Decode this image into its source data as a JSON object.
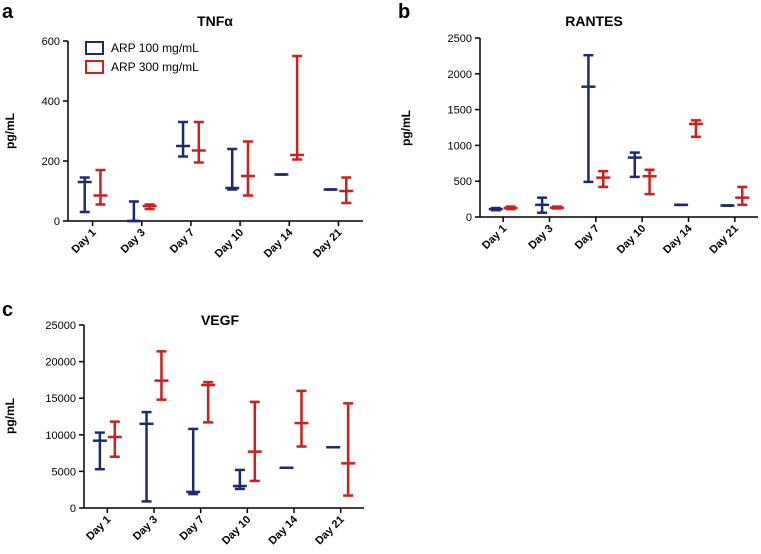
{
  "colors": {
    "series_a": "#1f2a6b",
    "series_b": "#cc1f1f"
  },
  "legend": [
    "ARP 100 mg/mL",
    "ARP 300 mg/mL"
  ],
  "chart_data": [
    {
      "type": "range",
      "panel": "a",
      "title": "TNFα",
      "ylabel": "pg/mL",
      "ylim": [
        0,
        600
      ],
      "yticks": [
        0,
        200,
        400,
        600
      ],
      "categories": [
        "Day 1",
        "Day 3",
        "Day 7",
        "Day 10",
        "Day 14",
        "Day 21"
      ],
      "series": [
        {
          "name": "ARP 100 mg/mL",
          "mid": [
            130,
            0,
            250,
            110,
            155,
            105
          ],
          "low": [
            30,
            0,
            215,
            105,
            155,
            105
          ],
          "high": [
            145,
            65,
            330,
            240,
            155,
            105
          ]
        },
        {
          "name": "ARP 300 mg/mL",
          "mid": [
            85,
            50,
            235,
            150,
            220,
            100
          ],
          "low": [
            55,
            40,
            195,
            85,
            205,
            60
          ],
          "high": [
            170,
            55,
            330,
            265,
            550,
            145
          ]
        }
      ]
    },
    {
      "type": "range",
      "panel": "b",
      "title": "RANTES",
      "ylabel": "pg/mL",
      "ylim": [
        0,
        2500
      ],
      "yticks": [
        0,
        500,
        1000,
        1500,
        2000,
        2500
      ],
      "categories": [
        "Day 1",
        "Day 3",
        "Day 7",
        "Day 10",
        "Day 14",
        "Day 21"
      ],
      "series": [
        {
          "name": "ARP 100 mg/mL",
          "mid": [
            110,
            170,
            1820,
            830,
            170,
            160
          ],
          "low": [
            95,
            60,
            490,
            560,
            170,
            160
          ],
          "high": [
            125,
            270,
            2260,
            900,
            170,
            160
          ]
        },
        {
          "name": "ARP 300 mg/mL",
          "mid": [
            125,
            130,
            550,
            570,
            1300,
            270
          ],
          "low": [
            110,
            120,
            420,
            320,
            1120,
            170
          ],
          "high": [
            145,
            145,
            640,
            660,
            1350,
            420
          ]
        }
      ]
    },
    {
      "type": "range",
      "panel": "c",
      "title": "VEGF",
      "ylabel": "pg/mL",
      "ylim": [
        0,
        25000
      ],
      "yticks": [
        0,
        5000,
        10000,
        15000,
        20000,
        25000
      ],
      "categories": [
        "Day 1",
        "Day 3",
        "Day 7",
        "Day 10",
        "Day 14",
        "Day 21"
      ],
      "series": [
        {
          "name": "ARP 100 mg/mL",
          "mid": [
            9200,
            11500,
            2200,
            3000,
            5500,
            8300
          ],
          "low": [
            5300,
            900,
            1900,
            2600,
            5500,
            8300
          ],
          "high": [
            10300,
            13100,
            10800,
            5200,
            5500,
            8300
          ]
        },
        {
          "name": "ARP 300 mg/mL",
          "mid": [
            9700,
            17400,
            16800,
            7700,
            11600,
            6100
          ],
          "low": [
            7000,
            14800,
            11700,
            3700,
            8400,
            1700
          ],
          "high": [
            11800,
            21400,
            17200,
            14500,
            16000,
            14300
          ]
        }
      ]
    }
  ]
}
